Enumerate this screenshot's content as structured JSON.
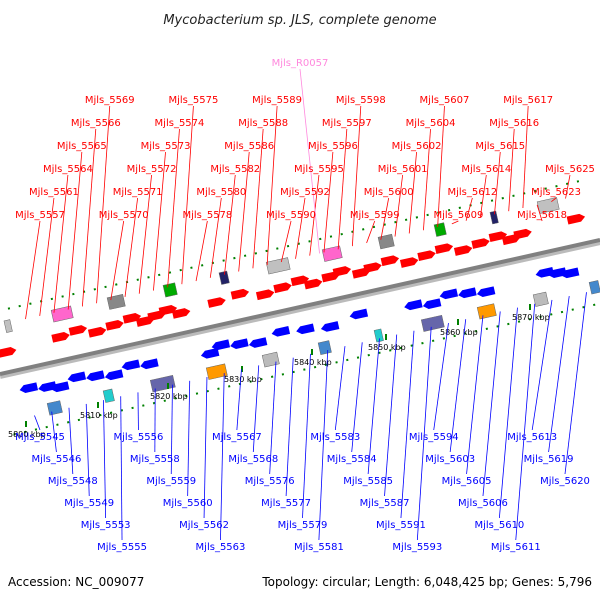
{
  "title": "Mycobacterium sp. JLS, complete genome",
  "footer": {
    "accession": "Accession: NC_009077",
    "summary": "Topology: circular; Length: 6,048,425 bp; Genes: 5,796"
  },
  "colors": {
    "forward": "#ff0000",
    "reverse": "#0000ff",
    "rna": "#ff88dd",
    "backbone": "#808080",
    "tick": "#008000"
  },
  "scale": [
    "5800 kbp",
    "5810 kbp",
    "5820 kbp",
    "5830 kbp",
    "5840 kbp",
    "5850 kbp",
    "5860 kbp",
    "5870 kbp"
  ],
  "top_genes": [
    "Mjls_5557",
    "Mjls_5561",
    "Mjls_5564",
    "Mjls_5565",
    "Mjls_5566",
    "Mjls_5569",
    "Mjls_5570",
    "Mjls_5571",
    "Mjls_5572",
    "Mjls_5573",
    "Mjls_5574",
    "Mjls_5575",
    "Mjls_5578",
    "Mjls_5580",
    "Mjls_5582",
    "Mjls_5586",
    "Mjls_5588",
    "Mjls_5589",
    "Mjls_5590",
    "Mjls_5592",
    "Mjls_5595",
    "Mjls_5596",
    "Mjls_5597",
    "Mjls_5598",
    "Mjls_5599",
    "Mjls_5600",
    "Mjls_5601",
    "Mjls_5602",
    "Mjls_5604",
    "Mjls_5607",
    "Mjls_5609",
    "Mjls_5612",
    "Mjls_5614",
    "Mjls_5615",
    "Mjls_5616",
    "Mjls_5617",
    "Mjls_5618",
    "Mjls_5623",
    "Mjls_5625"
  ],
  "rna_genes": [
    "Mjls_R0057"
  ],
  "bottom_genes": [
    "Mjls_5545",
    "Mjls_5546",
    "Mjls_5548",
    "Mjls_5549",
    "Mjls_5553",
    "Mjls_5555",
    "Mjls_5556",
    "Mjls_5558",
    "Mjls_5559",
    "Mjls_5560",
    "Mjls_5562",
    "Mjls_5563",
    "Mjls_5567",
    "Mjls_5568",
    "Mjls_5576",
    "Mjls_5577",
    "Mjls_5579",
    "Mjls_5581",
    "Mjls_5583",
    "Mjls_5584",
    "Mjls_5585",
    "Mjls_5587",
    "Mjls_5591",
    "Mjls_5593",
    "Mjls_5594",
    "Mjls_5603",
    "Mjls_5605",
    "Mjls_5606",
    "Mjls_5610",
    "Mjls_5611",
    "Mjls_5613",
    "Mjls_5619",
    "Mjls_5620"
  ]
}
